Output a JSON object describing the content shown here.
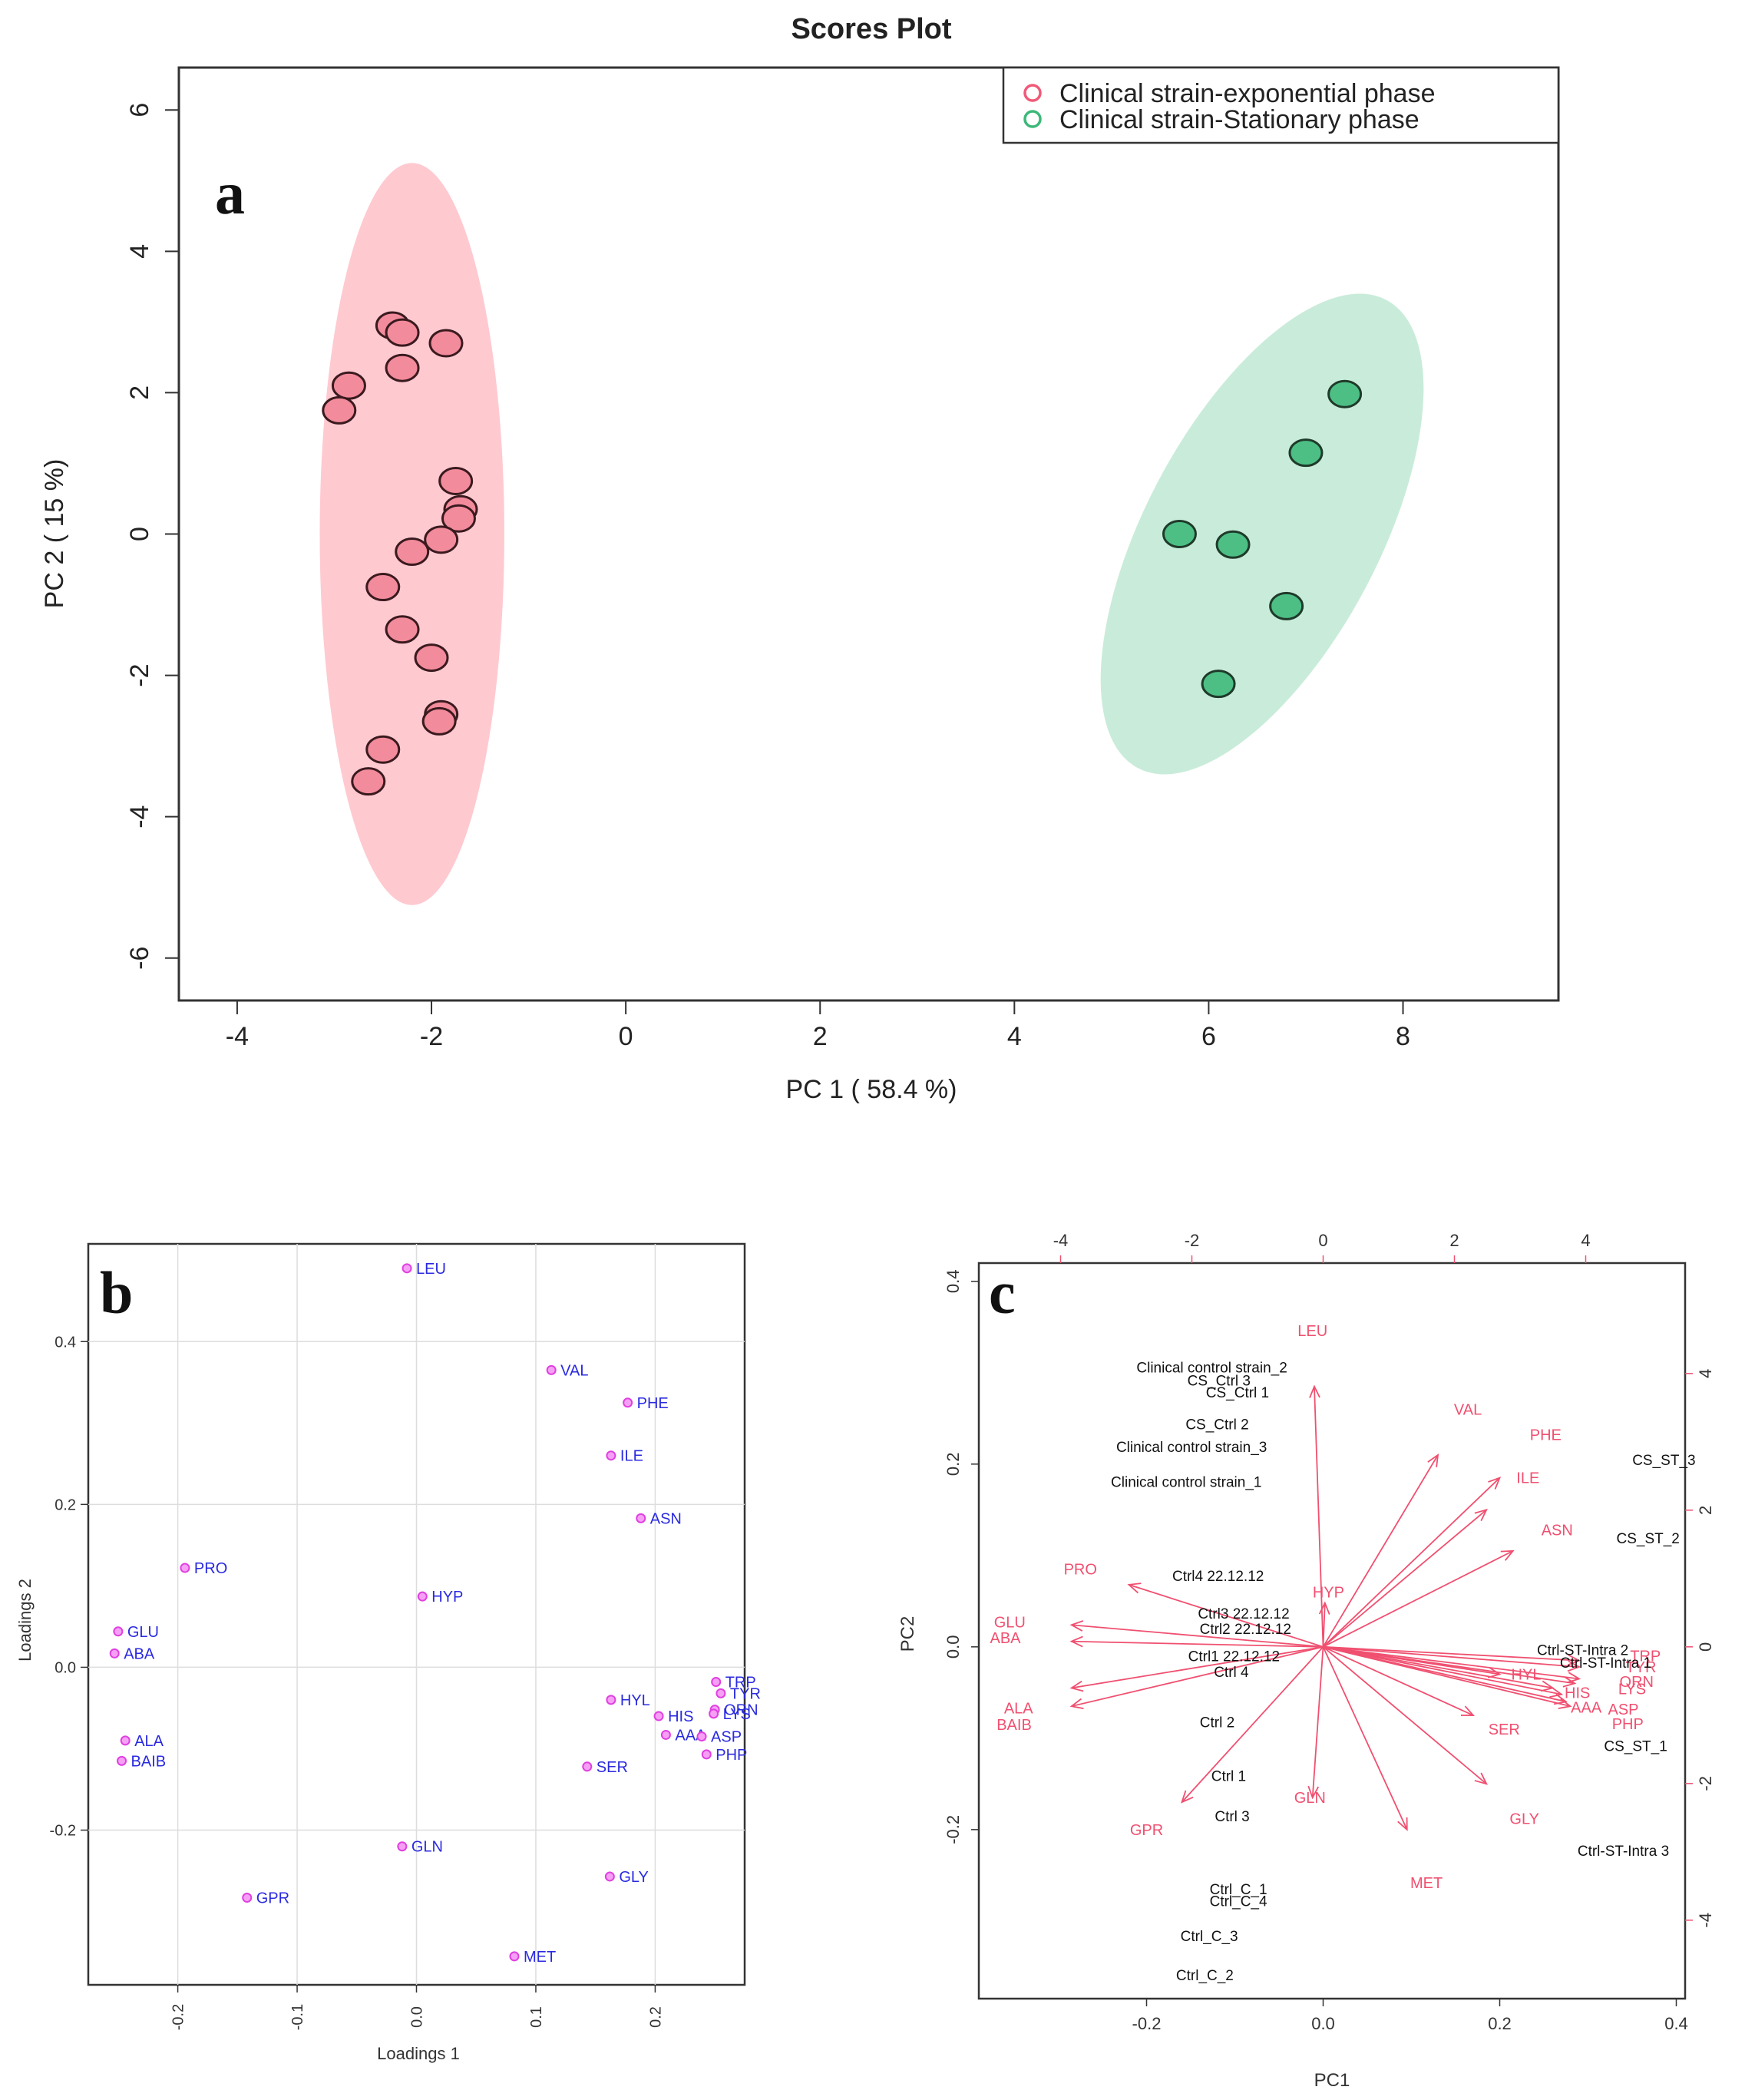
{
  "colors": {
    "pink_fill": "#f28b9b",
    "pink_stroke": "#3a1a1f",
    "pink_ellipse": "#ffc0c8",
    "green_fill": "#4dbf85",
    "green_stroke": "#1f3a2a",
    "green_ellipse": "#bfe9d3",
    "magenta_point": "#e040e0",
    "blue_label": "#2a2ae0",
    "red_arrow": "#f05070",
    "grid": "#dddddd",
    "axis": "#333333"
  },
  "chart_data": [
    {
      "type": "scatter",
      "panel_letter": "a",
      "title": "Scores Plot",
      "xlabel": "PC 1 ( 58.4 %)",
      "ylabel": "PC 2 ( 15 %)",
      "xlim": [
        -4.6,
        9.6
      ],
      "ylim": [
        -6.6,
        6.6
      ],
      "xticks": [
        -4,
        -2,
        0,
        2,
        4,
        6,
        8
      ],
      "yticks": [
        -6,
        -4,
        -2,
        0,
        2,
        4,
        6
      ],
      "legend": [
        "Clinical strain-exponential phase",
        "Clinical strain-Stationary phase"
      ],
      "ellipses": [
        {
          "name": "exponential",
          "cx": -2.2,
          "cy": 0.0,
          "rx": 0.95,
          "ry": 5.25,
          "angle": 0
        },
        {
          "name": "stationary",
          "cx": 6.55,
          "cy": 0.0,
          "rx": 1.2,
          "ry": 3.75,
          "angle": 28
        }
      ],
      "series": [
        {
          "name": "Clinical strain-exponential phase",
          "points": [
            [
              -2.4,
              2.95
            ],
            [
              -2.3,
              2.85
            ],
            [
              -1.85,
              2.7
            ],
            [
              -2.3,
              2.35
            ],
            [
              -2.85,
              2.1
            ],
            [
              -2.95,
              1.75
            ],
            [
              -1.75,
              0.75
            ],
            [
              -1.7,
              0.35
            ],
            [
              -1.72,
              0.22
            ],
            [
              -1.9,
              -0.08
            ],
            [
              -2.2,
              -0.25
            ],
            [
              -2.5,
              -0.75
            ],
            [
              -2.3,
              -1.35
            ],
            [
              -2.0,
              -1.75
            ],
            [
              -1.9,
              -2.55
            ],
            [
              -1.92,
              -2.65
            ],
            [
              -2.5,
              -3.05
            ],
            [
              -2.65,
              -3.5
            ]
          ]
        },
        {
          "name": "Clinical strain-Stationary phase",
          "points": [
            [
              7.4,
              1.98
            ],
            [
              7.0,
              1.15
            ],
            [
              5.7,
              0.0
            ],
            [
              6.25,
              -0.15
            ],
            [
              6.8,
              -1.02
            ],
            [
              6.1,
              -2.12
            ]
          ]
        }
      ]
    },
    {
      "type": "scatter",
      "panel_letter": "b",
      "xlabel": "Loadings 1",
      "ylabel": "Loadings 2",
      "xlim": [
        -0.275,
        0.275
      ],
      "ylim": [
        -0.39,
        0.52
      ],
      "xticks": [
        "-0.2",
        "-0.1",
        "0.0",
        "0.1",
        "0.2"
      ],
      "yticks": [
        "-0.2",
        "0.0",
        "0.2",
        "0.4"
      ],
      "points": [
        {
          "label": "LEU",
          "x": -0.008,
          "y": 0.49
        },
        {
          "label": "VAL",
          "x": 0.113,
          "y": 0.365
        },
        {
          "label": "PHE",
          "x": 0.177,
          "y": 0.325
        },
        {
          "label": "ILE",
          "x": 0.163,
          "y": 0.26
        },
        {
          "label": "ASN",
          "x": 0.188,
          "y": 0.183
        },
        {
          "label": "PRO",
          "x": -0.194,
          "y": 0.122
        },
        {
          "label": "HYP",
          "x": 0.005,
          "y": 0.087
        },
        {
          "label": "GLU",
          "x": -0.25,
          "y": 0.044
        },
        {
          "label": "ABA",
          "x": -0.253,
          "y": 0.017
        },
        {
          "label": "TRP",
          "x": 0.251,
          "y": -0.018
        },
        {
          "label": "TYR",
          "x": 0.255,
          "y": -0.032
        },
        {
          "label": "HYL",
          "x": 0.163,
          "y": -0.04
        },
        {
          "label": "ORN",
          "x": 0.25,
          "y": -0.052
        },
        {
          "label": "LYS",
          "x": 0.249,
          "y": -0.057
        },
        {
          "label": "HIS",
          "x": 0.203,
          "y": -0.06
        },
        {
          "label": "AAA",
          "x": 0.209,
          "y": -0.083
        },
        {
          "label": "ASP",
          "x": 0.239,
          "y": -0.085
        },
        {
          "label": "ALA",
          "x": -0.244,
          "y": -0.09
        },
        {
          "label": "PHP",
          "x": 0.243,
          "y": -0.107
        },
        {
          "label": "BAIB",
          "x": -0.247,
          "y": -0.115
        },
        {
          "label": "SER",
          "x": 0.143,
          "y": -0.122
        },
        {
          "label": "GLN",
          "x": -0.012,
          "y": -0.22
        },
        {
          "label": "GLY",
          "x": 0.162,
          "y": -0.257
        },
        {
          "label": "GPR",
          "x": -0.142,
          "y": -0.283
        },
        {
          "label": "MET",
          "x": 0.082,
          "y": -0.355
        }
      ]
    },
    {
      "type": "scatter",
      "subtype": "biplot",
      "panel_letter": "c",
      "xlabel": "PC1",
      "ylabel": "PC2",
      "xlim": [
        -0.39,
        0.41
      ],
      "ylim": [
        -0.385,
        0.42
      ],
      "xticks": [
        "-0.2",
        "0.0",
        "0.2",
        "0.4"
      ],
      "yticks": [
        "-0.2",
        "0.0",
        "0.2",
        "0.4"
      ],
      "top_ticks": [
        "-4",
        "-2",
        "0",
        "2",
        "4"
      ],
      "right_ticks": [
        "-4",
        "-2",
        "0",
        "2",
        "4"
      ],
      "sample_labels": [
        {
          "label": "Clinical control strain_2",
          "x": -0.126,
          "y": 0.306
        },
        {
          "label": "CS_Ctrl 3",
          "x": -0.118,
          "y": 0.292
        },
        {
          "label": "CS_Ctrl 1",
          "x": -0.097,
          "y": 0.279
        },
        {
          "label": "CS_Ctrl 2",
          "x": -0.12,
          "y": 0.244
        },
        {
          "label": "Clinical control strain_3",
          "x": -0.149,
          "y": 0.219
        },
        {
          "label": "Clinical control strain_1",
          "x": -0.155,
          "y": 0.181
        },
        {
          "label": "Ctrl4 22.12.12",
          "x": -0.119,
          "y": 0.078
        },
        {
          "label": "Ctrl3 22.12.12",
          "x": -0.09,
          "y": 0.037
        },
        {
          "label": "Ctrl2 22.12.12",
          "x": -0.088,
          "y": 0.02
        },
        {
          "label": "Ctrl1 22.12.12",
          "x": -0.101,
          "y": -0.01
        },
        {
          "label": "Ctrl 4",
          "x": -0.104,
          "y": -0.027
        },
        {
          "label": "Ctrl 2",
          "x": -0.12,
          "y": -0.082
        },
        {
          "label": "Ctrl 1",
          "x": -0.107,
          "y": -0.141
        },
        {
          "label": "Ctrl 3",
          "x": -0.103,
          "y": -0.185
        },
        {
          "label": "Ctrl_C_1",
          "x": -0.096,
          "y": -0.265
        },
        {
          "label": "Ctrl_C_4",
          "x": -0.096,
          "y": -0.278
        },
        {
          "label": "Ctrl_C_3",
          "x": -0.129,
          "y": -0.316
        },
        {
          "label": "Ctrl_C_2",
          "x": -0.134,
          "y": -0.359
        },
        {
          "label": "CS_ST_3",
          "x": 0.386,
          "y": 0.205
        },
        {
          "label": "CS_ST_2",
          "x": 0.368,
          "y": 0.119
        },
        {
          "label": "Ctrl-ST-Intra 2",
          "x": 0.294,
          "y": -0.003
        },
        {
          "label": "Ctrl-ST-Intra 1",
          "x": 0.32,
          "y": -0.017
        },
        {
          "label": "CS_ST_1",
          "x": 0.354,
          "y": -0.108
        },
        {
          "label": "Ctrl-ST-Intra 3",
          "x": 0.34,
          "y": -0.223
        }
      ],
      "arrows": [
        {
          "label": "LEU",
          "x": -0.01,
          "y": 0.285,
          "lx": -0.012,
          "ly": 0.346
        },
        {
          "label": "VAL",
          "x": 0.13,
          "y": 0.21,
          "lx": 0.164,
          "ly": 0.26
        },
        {
          "label": "PHE",
          "x": 0.2,
          "y": 0.185,
          "lx": 0.252,
          "ly": 0.232
        },
        {
          "label": "ILE",
          "x": 0.185,
          "y": 0.15,
          "lx": 0.232,
          "ly": 0.185
        },
        {
          "label": "ASN",
          "x": 0.215,
          "y": 0.105,
          "lx": 0.265,
          "ly": 0.128
        },
        {
          "label": "PRO",
          "x": -0.22,
          "y": 0.068,
          "lx": -0.275,
          "ly": 0.085
        },
        {
          "label": "HYP",
          "x": 0.002,
          "y": 0.048,
          "lx": 0.006,
          "ly": 0.06
        },
        {
          "label": "GLU",
          "x": -0.285,
          "y": 0.024,
          "lx": -0.355,
          "ly": 0.027
        },
        {
          "label": "ABA",
          "x": -0.285,
          "y": 0.006,
          "lx": -0.36,
          "ly": 0.01
        },
        {
          "label": "TRP",
          "x": 0.29,
          "y": -0.015,
          "lx": 0.365,
          "ly": -0.01
        },
        {
          "label": "TYR",
          "x": 0.29,
          "y": -0.022,
          "lx": 0.36,
          "ly": -0.022
        },
        {
          "label": "HYL",
          "x": 0.2,
          "y": -0.03,
          "lx": 0.23,
          "ly": -0.03
        },
        {
          "label": "ORN",
          "x": 0.29,
          "y": -0.035,
          "lx": 0.355,
          "ly": -0.038
        },
        {
          "label": "LYS",
          "x": 0.285,
          "y": -0.04,
          "lx": 0.35,
          "ly": -0.046
        },
        {
          "label": "HIS",
          "x": 0.26,
          "y": -0.045,
          "lx": 0.288,
          "ly": -0.05
        },
        {
          "label": "AAA",
          "x": 0.275,
          "y": -0.06,
          "lx": 0.298,
          "ly": -0.066
        },
        {
          "label": "ASP",
          "x": 0.27,
          "y": -0.052,
          "lx": 0.34,
          "ly": -0.068
        },
        {
          "label": "ALA",
          "x": -0.285,
          "y": -0.045,
          "lx": -0.345,
          "ly": -0.067
        },
        {
          "label": "PHP",
          "x": 0.28,
          "y": -0.065,
          "lx": 0.345,
          "ly": -0.084
        },
        {
          "label": "BAIB",
          "x": -0.285,
          "y": -0.065,
          "lx": -0.35,
          "ly": -0.085
        },
        {
          "label": "SER",
          "x": 0.17,
          "y": -0.075,
          "lx": 0.205,
          "ly": -0.09
        },
        {
          "label": "GLN",
          "x": -0.012,
          "y": -0.165,
          "lx": -0.015,
          "ly": -0.165
        },
        {
          "label": "GLY",
          "x": 0.185,
          "y": -0.15,
          "lx": 0.228,
          "ly": -0.188
        },
        {
          "label": "GPR",
          "x": -0.16,
          "y": -0.17,
          "lx": -0.2,
          "ly": -0.2
        },
        {
          "label": "MET",
          "x": 0.095,
          "y": -0.2,
          "lx": 0.117,
          "ly": -0.258
        }
      ]
    }
  ]
}
